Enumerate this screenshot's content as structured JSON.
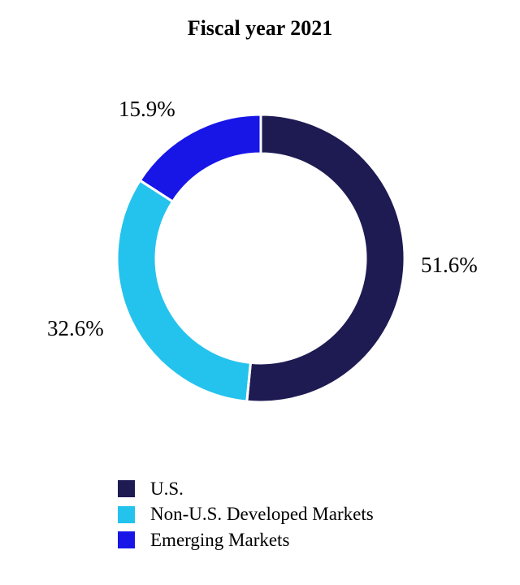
{
  "title": "Fiscal year 2021",
  "chart_data": {
    "type": "pie",
    "subtype": "donut",
    "title": "Fiscal year 2021",
    "start_angle_deg": 0,
    "direction": "clockwise",
    "categories": [
      "U.S.",
      "Non-U.S. Developed Markets",
      "Emerging Markets"
    ],
    "values": [
      51.6,
      32.6,
      15.9
    ],
    "labels": [
      "51.6%",
      "32.6%",
      "15.9%"
    ],
    "colors": [
      "#1E1B52",
      "#24C3ED",
      "#1716E7"
    ],
    "separator_color": "#FFFFFF",
    "legend_position": "bottom-left"
  }
}
